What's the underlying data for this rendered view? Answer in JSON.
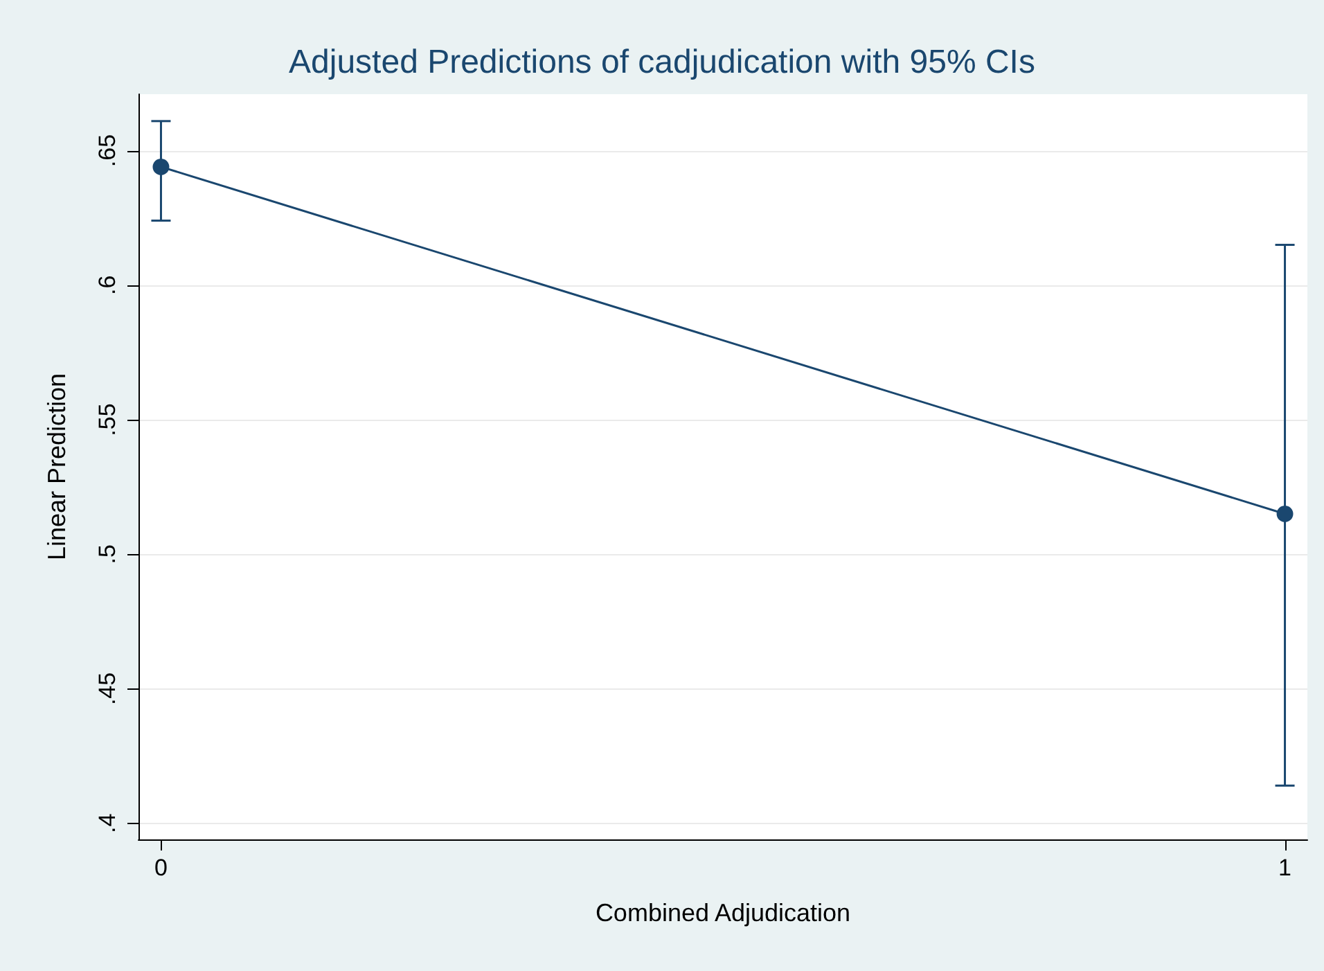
{
  "chart_data": {
    "type": "line",
    "title": "Adjusted Predictions of cadjudication with 95% CIs",
    "xlabel": "Combined Adjudication",
    "ylabel": "Linear Prediction",
    "x": [
      0,
      1
    ],
    "series": [
      {
        "color": "#1a476f",
        "values": [
          0.644,
          0.515
        ],
        "errors": [
          [
            0.624,
            0.661
          ],
          [
            0.414,
            0.615
          ]
        ]
      }
    ],
    "xlim": [
      -0.02,
      1.02
    ],
    "xticks": [
      0,
      1
    ],
    "ylim": [
      0.394,
      0.671
    ],
    "yticks": [
      {
        "value": 0.4,
        "label": ".4"
      },
      {
        "value": 0.45,
        "label": ".45"
      },
      {
        "value": 0.5,
        "label": ".5"
      },
      {
        "value": 0.55,
        "label": ".55"
      },
      {
        "value": 0.6,
        "label": ".6"
      },
      {
        "value": 0.65,
        "label": ".65"
      }
    ],
    "grid": "y",
    "marker": "circle",
    "line_style": "solid"
  }
}
